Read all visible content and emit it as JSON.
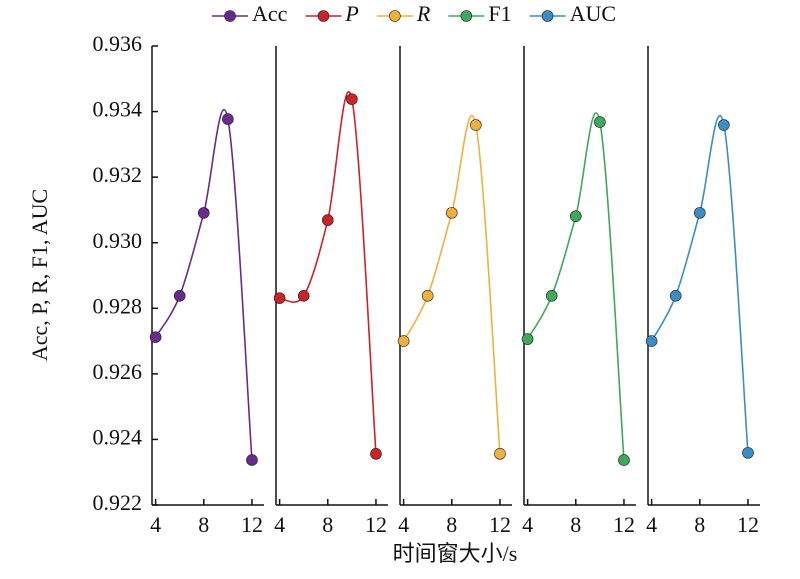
{
  "chart_data": {
    "type": "line",
    "x_label": "时间窗大小/s",
    "y_label": "Acc, P, R, F1, AUC",
    "x": [
      4,
      6,
      8,
      10,
      12
    ],
    "xlim": [
      3.7,
      13
    ],
    "xticks": [
      4,
      8,
      12
    ],
    "ylim": [
      0.922,
      0.936
    ],
    "yticks": [
      0.922,
      0.924,
      0.926,
      0.928,
      {
        "value": 0.93,
        "label": "0.930"
      },
      0.932,
      0.934,
      0.936
    ],
    "legend": "top",
    "series": [
      {
        "name": "Acc",
        "color": "#6a2a8c",
        "font_style": "normal",
        "values": [
          0.92712,
          0.92838,
          0.93091,
          0.93377,
          0.92337
        ]
      },
      {
        "name": "P",
        "color": "#cc2229",
        "font_style": "italic",
        "values": [
          0.92831,
          0.92838,
          0.93069,
          0.93438,
          0.92356
        ]
      },
      {
        "name": "R",
        "color": "#efb03e",
        "font_style": "italic",
        "values": [
          0.927,
          0.92838,
          0.93091,
          0.93359,
          0.92356
        ]
      },
      {
        "name": "F1",
        "color": "#3ea95a",
        "font_style": "normal",
        "values": [
          0.92706,
          0.92838,
          0.93081,
          0.93368,
          0.92337
        ]
      },
      {
        "name": "AUC",
        "color": "#3a8ec6",
        "font_style": "normal",
        "values": [
          0.927,
          0.92838,
          0.93091,
          0.93359,
          0.92359
        ]
      }
    ]
  }
}
